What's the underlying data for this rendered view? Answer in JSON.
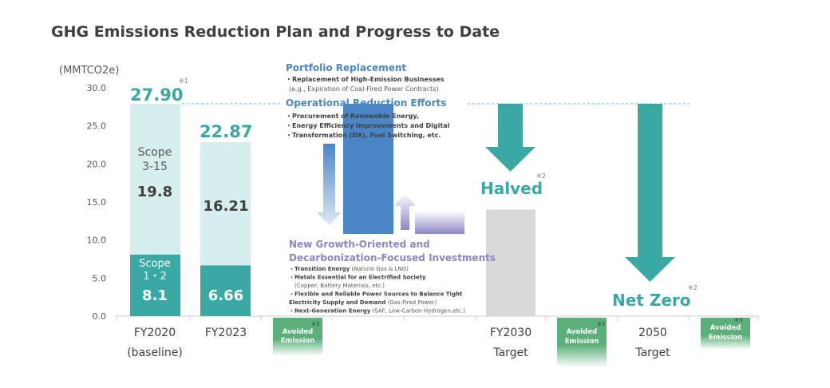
{
  "chart_data": {
    "type": "bar",
    "title": "GHG Emissions Reduction Plan and Progress to Date",
    "unit_label": "(MMTCO2e)",
    "ylim": [
      0,
      30
    ],
    "yticks": [
      "0.0",
      "5.0",
      "10.0",
      "15.0",
      "20.0",
      "25.0",
      "30.0"
    ],
    "grid": false,
    "categories": [
      {
        "line1": "FY2020",
        "line2": "(baseline)"
      },
      {
        "line1": "FY2023",
        "line2": ""
      },
      {
        "line1": "FY2030",
        "line2": "Target"
      },
      {
        "line1": "2050",
        "line2": "Target"
      }
    ],
    "series": [
      {
        "name": "Scope 1・2",
        "label_lines": [
          "Scope",
          "1・2"
        ],
        "values": [
          8.1,
          6.66,
          null,
          null
        ],
        "labels": [
          "8.1",
          "6.66"
        ],
        "color": "#3aa9a4"
      },
      {
        "name": "Scope 3-15",
        "label_lines": [
          "Scope",
          "3-15"
        ],
        "values": [
          19.8,
          16.21,
          null,
          null
        ],
        "labels": [
          "19.8",
          "16.21"
        ],
        "color": "#d7eeee"
      },
      {
        "name": "FY2030 Target",
        "values": [
          null,
          null,
          14.0,
          null
        ],
        "color": "#d9d9d9"
      }
    ],
    "totals": [
      {
        "value": "27.90",
        "note": "※1"
      },
      {
        "value": "22.87",
        "note": ""
      }
    ],
    "dashed_reference": 27.9,
    "annotations": {
      "halved": {
        "text": "Halved",
        "note": "※2"
      },
      "net_zero": {
        "text": "Net Zero",
        "note": "※2"
      },
      "avoided": {
        "line1": "Avoided",
        "line2": "Emission",
        "note": "※3"
      }
    },
    "waterfall": {
      "decrease_top": 27.9,
      "decrease_bottom": 10.8,
      "increase_top": 13.8,
      "increase_bottom": 10.8
    }
  },
  "texts": {
    "portfolio_title": "Portfolio Replacement",
    "portfolio_lines": [
      "・Replacement of High-Emission Businesses",
      "(e.g., Expiration of Coal-Fired Power Contracts)"
    ],
    "operational_title": "Operational Reduction Efforts",
    "operational_lines": [
      "・Procurement of Renewable Energy,",
      "・Energy Efficiency Improvements and Digital",
      "・Transformation (DX), Fuel Switching, etc."
    ],
    "growth_title_1": "New Growth-Oriented and",
    "growth_title_2": "Decarbonization-Focused Investments",
    "growth_items": [
      {
        "bold": "・Transition Energy",
        "light": " (Natural Gas & LNG)"
      },
      {
        "bold": "・Metals Essential for an Electrified Society",
        "light": ""
      },
      {
        "bold": "",
        "light": "(Copper, Battery Materials, etc.)"
      },
      {
        "bold": "・Flexible and Reliable Power Sources to Balance Tight",
        "light": ""
      },
      {
        "bold": "Electricity Supply and Demand",
        "light": " (Gas-Fired Power)"
      },
      {
        "bold": "・Next-Generation Energy",
        "light": " (SAF, Low-Carbon Hydrogen,etc.)"
      }
    ]
  },
  "colors": {
    "teal": "#3aa9a4",
    "light_teal": "#d7eeee",
    "blue": "#4a86c5",
    "purple": "#8c86c6",
    "gray": "#d9d9d9",
    "green": "#5bb07a",
    "title": "#404040"
  }
}
